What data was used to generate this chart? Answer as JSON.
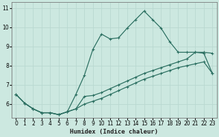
{
  "xlabel": "Humidex (Indice chaleur)",
  "background_color": "#cce8e0",
  "grid_color": "#b8d8d0",
  "line_color": "#2a6e60",
  "xlim": [
    -0.5,
    23.5
  ],
  "ylim": [
    5.3,
    11.3
  ],
  "xticks": [
    0,
    1,
    2,
    3,
    4,
    5,
    6,
    7,
    8,
    9,
    10,
    11,
    12,
    13,
    14,
    15,
    16,
    17,
    18,
    19,
    20,
    21,
    22,
    23
  ],
  "yticks": [
    6,
    7,
    8,
    9,
    10,
    11
  ],
  "line1_x": [
    0,
    1,
    2,
    3,
    4,
    5,
    6,
    7,
    8,
    9,
    10,
    11,
    12,
    13,
    14,
    15,
    16,
    17,
    18,
    19,
    20,
    21,
    22,
    23
  ],
  "line1_y": [
    6.5,
    6.05,
    5.75,
    5.55,
    5.55,
    5.45,
    5.6,
    5.75,
    6.0,
    6.15,
    6.3,
    6.5,
    6.7,
    6.9,
    7.1,
    7.3,
    7.45,
    7.6,
    7.75,
    7.9,
    8.0,
    8.1,
    8.2,
    7.6
  ],
  "line2_x": [
    0,
    1,
    2,
    3,
    4,
    5,
    6,
    7,
    8,
    9,
    10,
    11,
    12,
    13,
    14,
    15,
    16,
    17,
    18,
    19,
    20,
    21,
    22,
    23
  ],
  "line2_y": [
    6.5,
    6.05,
    5.75,
    5.55,
    5.55,
    5.45,
    5.6,
    6.5,
    7.5,
    8.85,
    9.65,
    9.4,
    9.45,
    9.95,
    10.4,
    10.85,
    10.4,
    9.95,
    9.25,
    8.7,
    8.7,
    8.7,
    8.65,
    7.6
  ],
  "line3_x": [
    0,
    1,
    2,
    3,
    4,
    5,
    6,
    7,
    8,
    9,
    10,
    11,
    12,
    13,
    14,
    15,
    16,
    17,
    18,
    19,
    20,
    21,
    22,
    23
  ],
  "line3_y": [
    6.5,
    6.05,
    5.75,
    5.55,
    5.55,
    5.45,
    5.6,
    5.75,
    6.4,
    6.45,
    6.6,
    6.8,
    7.0,
    7.2,
    7.4,
    7.6,
    7.75,
    7.9,
    8.05,
    8.2,
    8.35,
    8.7,
    8.7,
    8.65
  ]
}
